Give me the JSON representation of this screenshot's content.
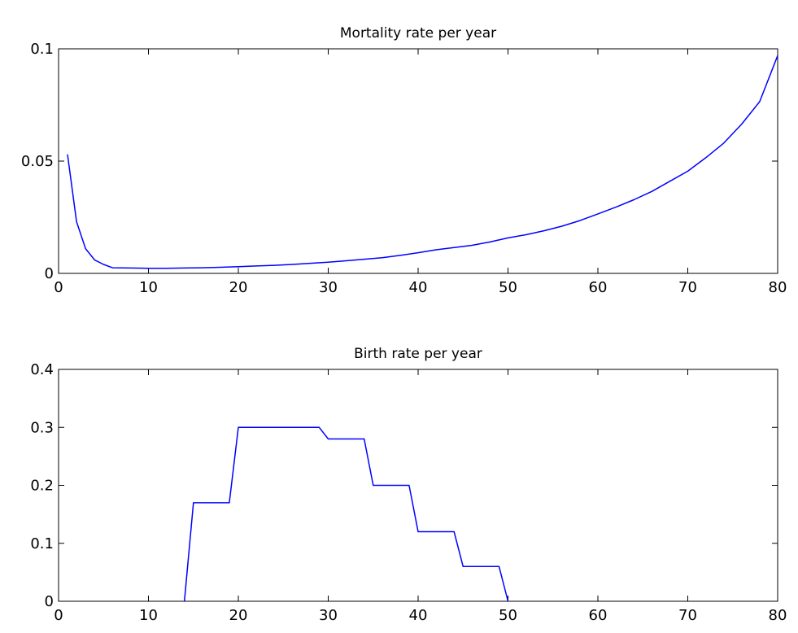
{
  "chart_data": [
    {
      "type": "line",
      "title": "Mortality rate per year",
      "xlabel": "",
      "ylabel": "",
      "xlim": [
        0,
        80
      ],
      "ylim": [
        0,
        0.1
      ],
      "xticks": [
        0,
        10,
        20,
        30,
        40,
        50,
        60,
        70,
        80
      ],
      "xtick_labels": [
        "0",
        "10",
        "20",
        "30",
        "40",
        "50",
        "60",
        "70",
        "80"
      ],
      "yticks": [
        0,
        0.05,
        0.1
      ],
      "ytick_labels": [
        "0",
        "0.05",
        "0.1"
      ],
      "grid": false,
      "color": "#0000ff",
      "series": [
        {
          "x": [
            1,
            2,
            3,
            4,
            5,
            6,
            8,
            10,
            12,
            14,
            16,
            18,
            20,
            22,
            24,
            26,
            28,
            30,
            32,
            34,
            36,
            38,
            40,
            42,
            44,
            46,
            48,
            50,
            52,
            54,
            56,
            58,
            60,
            62,
            64,
            66,
            68,
            70,
            72,
            74,
            76,
            78,
            80
          ],
          "y": [
            0.053,
            0.023,
            0.011,
            0.006,
            0.004,
            0.0025,
            0.0024,
            0.0023,
            0.0023,
            0.0024,
            0.0025,
            0.0027,
            0.003,
            0.0033,
            0.0036,
            0.004,
            0.0045,
            0.005,
            0.0056,
            0.0063,
            0.007,
            0.008,
            0.0092,
            0.0105,
            0.0115,
            0.0125,
            0.014,
            0.0158,
            0.0172,
            0.019,
            0.021,
            0.0235,
            0.0265,
            0.0295,
            0.0328,
            0.0365,
            0.041,
            0.0455,
            0.0515,
            0.058,
            0.0665,
            0.0765,
            0.097
          ]
        }
      ]
    },
    {
      "type": "line",
      "title": "Birth rate per year",
      "xlabel": "",
      "ylabel": "",
      "xlim": [
        0,
        80
      ],
      "ylim": [
        0,
        0.4
      ],
      "xticks": [
        0,
        10,
        20,
        30,
        40,
        50,
        60,
        70,
        80
      ],
      "xtick_labels": [
        "0",
        "10",
        "20",
        "30",
        "40",
        "50",
        "60",
        "70",
        "80"
      ],
      "yticks": [
        0,
        0.1,
        0.2,
        0.3,
        0.4
      ],
      "ytick_labels": [
        "0",
        "0.1",
        "0.2",
        "0.3",
        "0.4"
      ],
      "grid": false,
      "color": "#0000ff",
      "series": [
        {
          "x": [
            14,
            15,
            19,
            20,
            29,
            30,
            34,
            35,
            39,
            40,
            44,
            45,
            49,
            50
          ],
          "y": [
            0,
            0.17,
            0.17,
            0.3,
            0.3,
            0.28,
            0.28,
            0.2,
            0.2,
            0.12,
            0.12,
            0.06,
            0.06,
            0
          ]
        }
      ]
    }
  ]
}
